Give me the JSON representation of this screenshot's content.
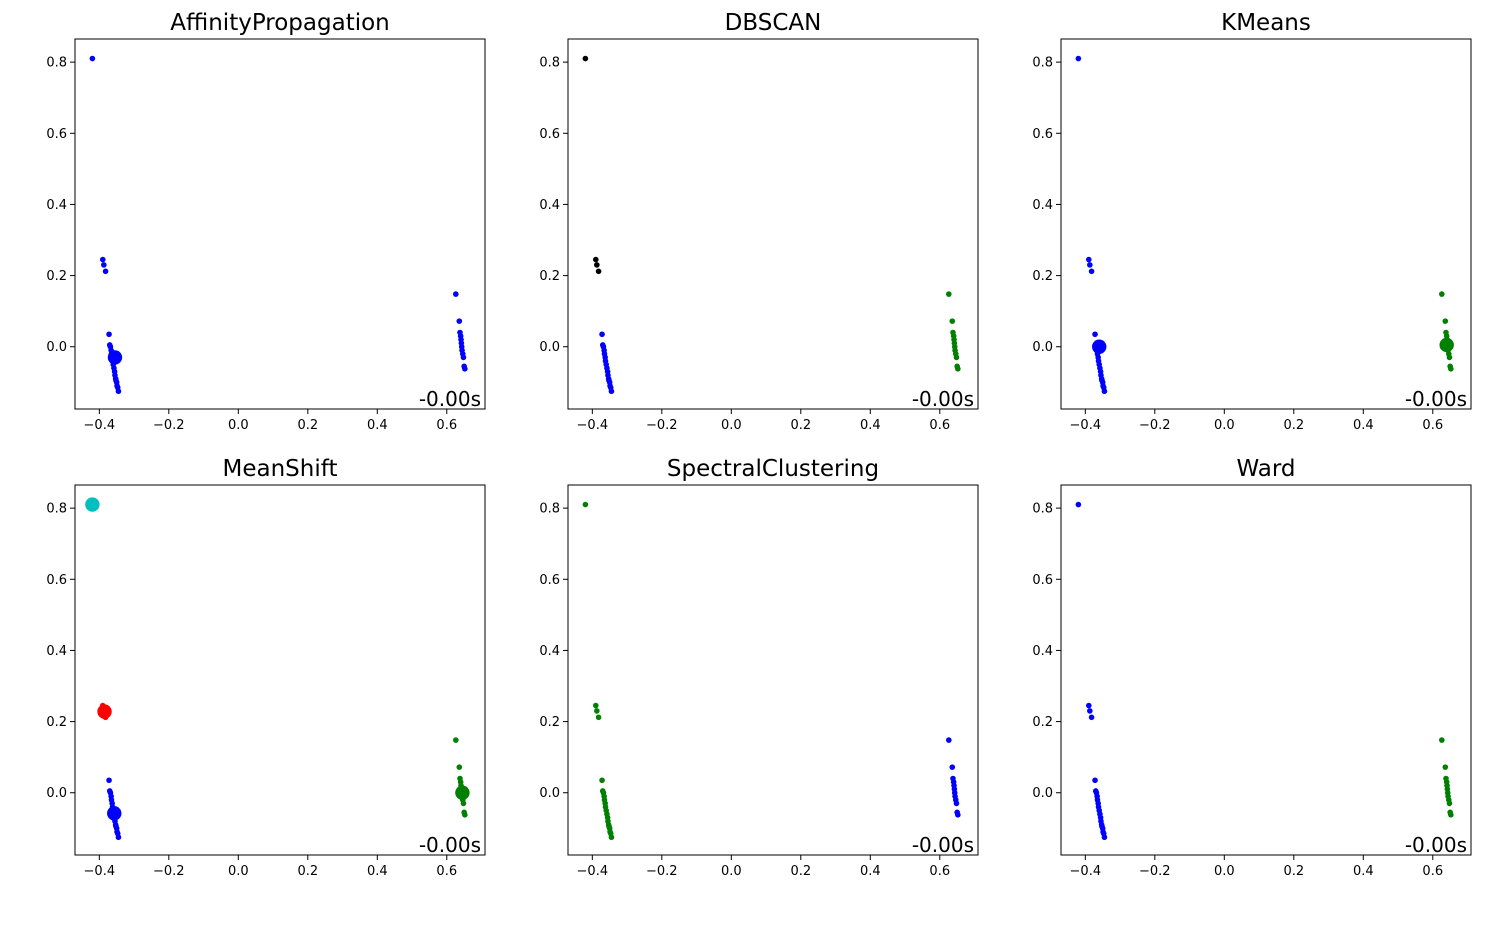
{
  "chart_data": [
    {
      "type": "scatter",
      "title": "AffinityPropagation",
      "timing": "-0.00s",
      "xlim": [
        -0.47,
        0.71
      ],
      "ylim": [
        -0.175,
        0.865
      ],
      "xticks": [
        -0.4,
        -0.2,
        0.0,
        0.2,
        0.4,
        0.6
      ],
      "xtick_labels": [
        "−0.4",
        "−0.2",
        "0.0",
        "0.2",
        "0.4",
        "0.6"
      ],
      "yticks": [
        0.0,
        0.2,
        0.4,
        0.6,
        0.8
      ],
      "ytick_labels": [
        "0.0",
        "0.2",
        "0.4",
        "0.6",
        "0.8"
      ],
      "series": [
        {
          "color": "#0000ff",
          "x": [
            -0.42,
            -0.39,
            -0.387,
            -0.382,
            -0.372,
            -0.37,
            -0.368,
            -0.366,
            -0.365,
            -0.363,
            -0.362,
            -0.36,
            -0.358,
            -0.356,
            -0.355,
            -0.353,
            -0.352,
            -0.35,
            -0.349,
            -0.347,
            -0.345,
            0.626,
            0.636,
            0.638,
            0.64,
            0.641,
            0.642,
            0.643,
            0.644,
            0.646,
            0.648,
            0.65,
            0.652
          ],
          "y": [
            0.81,
            0.245,
            0.23,
            0.212,
            0.035,
            0.005,
            0.0,
            -0.01,
            -0.02,
            -0.03,
            -0.04,
            -0.05,
            -0.06,
            -0.07,
            -0.08,
            -0.09,
            -0.095,
            -0.1,
            -0.11,
            -0.115,
            -0.125,
            0.148,
            0.072,
            0.04,
            0.03,
            0.02,
            0.01,
            0.0,
            -0.01,
            -0.02,
            -0.03,
            -0.055,
            -0.062
          ]
        },
        {
          "color": "#0000ff",
          "role": "center",
          "x": [
            -0.355
          ],
          "y": [
            -0.03
          ]
        }
      ]
    },
    {
      "type": "scatter",
      "title": "DBSCAN",
      "timing": "-0.00s",
      "xlim": [
        -0.47,
        0.71
      ],
      "ylim": [
        -0.175,
        0.865
      ],
      "xticks": [
        -0.4,
        -0.2,
        0.0,
        0.2,
        0.4,
        0.6
      ],
      "xtick_labels": [
        "−0.4",
        "−0.2",
        "0.0",
        "0.2",
        "0.4",
        "0.6"
      ],
      "yticks": [
        0.0,
        0.2,
        0.4,
        0.6,
        0.8
      ],
      "ytick_labels": [
        "0.0",
        "0.2",
        "0.4",
        "0.6",
        "0.8"
      ],
      "series": [
        {
          "color": "#000000",
          "x": [
            -0.42,
            -0.39,
            -0.387,
            -0.382
          ],
          "y": [
            0.81,
            0.245,
            0.23,
            0.212
          ]
        },
        {
          "color": "#0000ff",
          "x": [
            -0.372,
            -0.37,
            -0.368,
            -0.366,
            -0.365,
            -0.363,
            -0.362,
            -0.36,
            -0.358,
            -0.356,
            -0.355,
            -0.353,
            -0.352,
            -0.35,
            -0.349,
            -0.347,
            -0.345
          ],
          "y": [
            0.035,
            0.005,
            0.0,
            -0.01,
            -0.02,
            -0.03,
            -0.04,
            -0.05,
            -0.06,
            -0.07,
            -0.08,
            -0.09,
            -0.095,
            -0.1,
            -0.11,
            -0.115,
            -0.125
          ]
        },
        {
          "color": "#008000",
          "x": [
            0.626,
            0.636,
            0.638,
            0.64,
            0.641,
            0.642,
            0.643,
            0.644,
            0.646,
            0.648,
            0.65,
            0.652
          ],
          "y": [
            0.148,
            0.072,
            0.04,
            0.03,
            0.02,
            0.01,
            0.0,
            -0.01,
            -0.02,
            -0.03,
            -0.055,
            -0.062
          ]
        }
      ]
    },
    {
      "type": "scatter",
      "title": "KMeans",
      "timing": "-0.00s",
      "xlim": [
        -0.47,
        0.71
      ],
      "ylim": [
        -0.175,
        0.865
      ],
      "xticks": [
        -0.4,
        -0.2,
        0.0,
        0.2,
        0.4,
        0.6
      ],
      "xtick_labels": [
        "−0.4",
        "−0.2",
        "0.0",
        "0.2",
        "0.4",
        "0.6"
      ],
      "yticks": [
        0.0,
        0.2,
        0.4,
        0.6,
        0.8
      ],
      "ytick_labels": [
        "0.0",
        "0.2",
        "0.4",
        "0.6",
        "0.8"
      ],
      "series": [
        {
          "color": "#0000ff",
          "x": [
            -0.42,
            -0.39,
            -0.387,
            -0.382,
            -0.372,
            -0.37,
            -0.368,
            -0.366,
            -0.365,
            -0.363,
            -0.362,
            -0.36,
            -0.358,
            -0.356,
            -0.355,
            -0.353,
            -0.352,
            -0.35,
            -0.349,
            -0.347,
            -0.345
          ],
          "y": [
            0.81,
            0.245,
            0.23,
            0.212,
            0.035,
            0.005,
            0.0,
            -0.01,
            -0.02,
            -0.03,
            -0.04,
            -0.05,
            -0.06,
            -0.07,
            -0.08,
            -0.09,
            -0.095,
            -0.1,
            -0.11,
            -0.115,
            -0.125
          ]
        },
        {
          "color": "#008000",
          "x": [
            0.626,
            0.636,
            0.638,
            0.64,
            0.641,
            0.642,
            0.643,
            0.644,
            0.646,
            0.648,
            0.65,
            0.652
          ],
          "y": [
            0.148,
            0.072,
            0.04,
            0.03,
            0.02,
            0.01,
            0.0,
            -0.01,
            -0.02,
            -0.03,
            -0.055,
            -0.062
          ]
        },
        {
          "color": "#0000ff",
          "role": "center",
          "x": [
            -0.36
          ],
          "y": [
            0.0
          ]
        },
        {
          "color": "#008000",
          "role": "center",
          "x": [
            0.64
          ],
          "y": [
            0.005
          ]
        }
      ]
    },
    {
      "type": "scatter",
      "title": "MeanShift",
      "timing": "-0.00s",
      "xlim": [
        -0.47,
        0.71
      ],
      "ylim": [
        -0.175,
        0.865
      ],
      "xticks": [
        -0.4,
        -0.2,
        0.0,
        0.2,
        0.4,
        0.6
      ],
      "xtick_labels": [
        "−0.4",
        "−0.2",
        "0.0",
        "0.2",
        "0.4",
        "0.6"
      ],
      "yticks": [
        0.0,
        0.2,
        0.4,
        0.6,
        0.8
      ],
      "ytick_labels": [
        "0.0",
        "0.2",
        "0.4",
        "0.6",
        "0.8"
      ],
      "series": [
        {
          "color": "#00bfbf",
          "x": [
            -0.42
          ],
          "y": [
            0.81
          ]
        },
        {
          "color": "#ff0000",
          "x": [
            -0.39,
            -0.387,
            -0.382
          ],
          "y": [
            0.245,
            0.23,
            0.212
          ]
        },
        {
          "color": "#0000ff",
          "x": [
            -0.372,
            -0.37,
            -0.368,
            -0.366,
            -0.365,
            -0.363,
            -0.362,
            -0.36,
            -0.358,
            -0.356,
            -0.355,
            -0.353,
            -0.352,
            -0.35,
            -0.349,
            -0.347,
            -0.345
          ],
          "y": [
            0.035,
            0.005,
            0.0,
            -0.01,
            -0.02,
            -0.03,
            -0.04,
            -0.05,
            -0.06,
            -0.07,
            -0.08,
            -0.09,
            -0.095,
            -0.1,
            -0.11,
            -0.115,
            -0.125
          ]
        },
        {
          "color": "#008000",
          "x": [
            0.626,
            0.636,
            0.638,
            0.64,
            0.641,
            0.642,
            0.643,
            0.644,
            0.646,
            0.648,
            0.65,
            0.652
          ],
          "y": [
            0.148,
            0.072,
            0.04,
            0.03,
            0.02,
            0.01,
            0.0,
            -0.01,
            -0.02,
            -0.03,
            -0.055,
            -0.062
          ]
        },
        {
          "color": "#00bfbf",
          "role": "center",
          "x": [
            -0.42
          ],
          "y": [
            0.81
          ]
        },
        {
          "color": "#ff0000",
          "role": "center",
          "x": [
            -0.385
          ],
          "y": [
            0.228
          ]
        },
        {
          "color": "#0000ff",
          "role": "center",
          "x": [
            -0.357
          ],
          "y": [
            -0.058
          ]
        },
        {
          "color": "#008000",
          "role": "center",
          "x": [
            0.645
          ],
          "y": [
            0.0
          ]
        }
      ]
    },
    {
      "type": "scatter",
      "title": "SpectralClustering",
      "timing": "-0.00s",
      "xlim": [
        -0.47,
        0.71
      ],
      "ylim": [
        -0.175,
        0.865
      ],
      "xticks": [
        -0.4,
        -0.2,
        0.0,
        0.2,
        0.4,
        0.6
      ],
      "xtick_labels": [
        "−0.4",
        "−0.2",
        "0.0",
        "0.2",
        "0.4",
        "0.6"
      ],
      "yticks": [
        0.0,
        0.2,
        0.4,
        0.6,
        0.8
      ],
      "ytick_labels": [
        "0.0",
        "0.2",
        "0.4",
        "0.6",
        "0.8"
      ],
      "series": [
        {
          "color": "#008000",
          "x": [
            -0.42,
            -0.39,
            -0.387,
            -0.382,
            -0.372,
            -0.37,
            -0.368,
            -0.366,
            -0.365,
            -0.363,
            -0.362,
            -0.36,
            -0.358,
            -0.356,
            -0.355,
            -0.353,
            -0.352,
            -0.35,
            -0.349,
            -0.347,
            -0.345
          ],
          "y": [
            0.81,
            0.245,
            0.23,
            0.212,
            0.035,
            0.005,
            0.0,
            -0.01,
            -0.02,
            -0.03,
            -0.04,
            -0.05,
            -0.06,
            -0.07,
            -0.08,
            -0.09,
            -0.095,
            -0.1,
            -0.11,
            -0.115,
            -0.125
          ]
        },
        {
          "color": "#0000ff",
          "x": [
            0.626,
            0.636,
            0.638,
            0.64,
            0.641,
            0.642,
            0.643,
            0.644,
            0.646,
            0.648,
            0.65,
            0.652
          ],
          "y": [
            0.148,
            0.072,
            0.04,
            0.03,
            0.02,
            0.01,
            0.0,
            -0.01,
            -0.02,
            -0.03,
            -0.055,
            -0.062
          ]
        }
      ]
    },
    {
      "type": "scatter",
      "title": "Ward",
      "timing": "-0.00s",
      "xlim": [
        -0.47,
        0.71
      ],
      "ylim": [
        -0.175,
        0.865
      ],
      "xticks": [
        -0.4,
        -0.2,
        0.0,
        0.2,
        0.4,
        0.6
      ],
      "xtick_labels": [
        "−0.4",
        "−0.2",
        "0.0",
        "0.2",
        "0.4",
        "0.6"
      ],
      "yticks": [
        0.0,
        0.2,
        0.4,
        0.6,
        0.8
      ],
      "ytick_labels": [
        "0.0",
        "0.2",
        "0.4",
        "0.6",
        "0.8"
      ],
      "series": [
        {
          "color": "#0000ff",
          "x": [
            -0.42,
            -0.39,
            -0.387,
            -0.382,
            -0.372,
            -0.37,
            -0.368,
            -0.366,
            -0.365,
            -0.363,
            -0.362,
            -0.36,
            -0.358,
            -0.356,
            -0.355,
            -0.353,
            -0.352,
            -0.35,
            -0.349,
            -0.347,
            -0.345
          ],
          "y": [
            0.81,
            0.245,
            0.23,
            0.212,
            0.035,
            0.005,
            0.0,
            -0.01,
            -0.02,
            -0.03,
            -0.04,
            -0.05,
            -0.06,
            -0.07,
            -0.08,
            -0.09,
            -0.095,
            -0.1,
            -0.11,
            -0.115,
            -0.125
          ]
        },
        {
          "color": "#008000",
          "x": [
            0.626,
            0.636,
            0.638,
            0.64,
            0.641,
            0.642,
            0.643,
            0.644,
            0.646,
            0.648,
            0.65,
            0.652
          ],
          "y": [
            0.148,
            0.072,
            0.04,
            0.03,
            0.02,
            0.01,
            0.0,
            -0.01,
            -0.02,
            -0.03,
            -0.055,
            -0.062
          ]
        }
      ]
    }
  ]
}
